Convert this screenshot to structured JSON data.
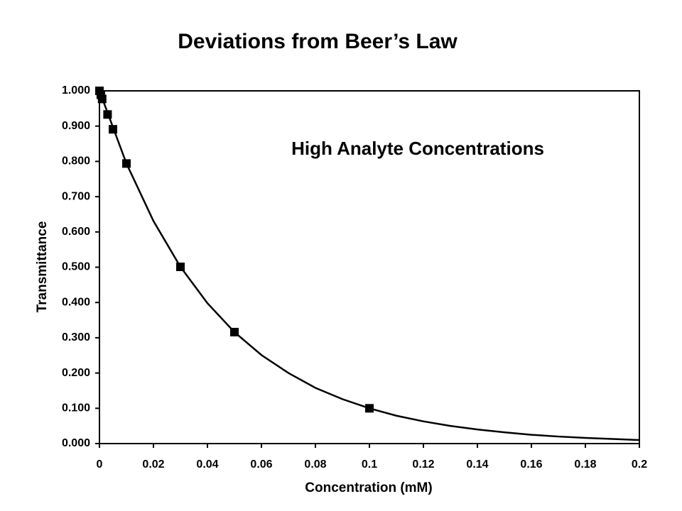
{
  "chart_data": {
    "type": "scatter",
    "title": "Deviations from Beer’s Law",
    "annotation": "High Analyte Concentrations",
    "x_label": "Concentration (mM)",
    "y_label": "Transmittance",
    "xlim": [
      0,
      0.2
    ],
    "xticks": [
      0,
      0.02,
      0.04,
      0.06,
      0.08,
      0.1,
      0.12,
      0.14,
      0.16,
      0.18,
      0.2
    ],
    "ylim": [
      0,
      1
    ],
    "yticks": [
      {
        "value": 0,
        "label": "0.000"
      },
      {
        "value": 0.1,
        "label": "0.100"
      },
      {
        "value": 0.2,
        "label": "0.200"
      },
      {
        "value": 0.3,
        "label": "0.300"
      },
      {
        "value": 0.4,
        "label": "0.400"
      },
      {
        "value": 0.5,
        "label": "0.500"
      },
      {
        "value": 0.6,
        "label": "0.600"
      },
      {
        "value": 0.7,
        "label": "0.700"
      },
      {
        "value": 0.8,
        "label": "0.800"
      },
      {
        "value": 0.9,
        "label": "0.900"
      },
      {
        "value": 1,
        "label": "1.000"
      }
    ],
    "grid": false,
    "series": [
      {
        "color": "#000000",
        "marker": "square",
        "x": [
          0,
          0.0005,
          0.001,
          0.003,
          0.005,
          0.01,
          0.03,
          0.05,
          0.1
        ],
        "values": [
          1.0,
          0.989,
          0.977,
          0.933,
          0.891,
          0.794,
          0.501,
          0.316,
          0.1
        ]
      },
      {
        "color": "#000000",
        "marker": "line",
        "x": [
          0,
          0.01,
          0.02,
          0.03,
          0.04,
          0.05,
          0.06,
          0.07,
          0.08,
          0.09,
          0.1,
          0.11,
          0.12,
          0.13,
          0.14,
          0.15,
          0.16,
          0.17,
          0.18,
          0.19,
          0.2
        ],
        "values": [
          1.0,
          0.794,
          0.631,
          0.501,
          0.398,
          0.316,
          0.251,
          0.2,
          0.158,
          0.126,
          0.1,
          0.079,
          0.063,
          0.05,
          0.04,
          0.032,
          0.025,
          0.02,
          0.016,
          0.013,
          0.01
        ]
      }
    ]
  }
}
